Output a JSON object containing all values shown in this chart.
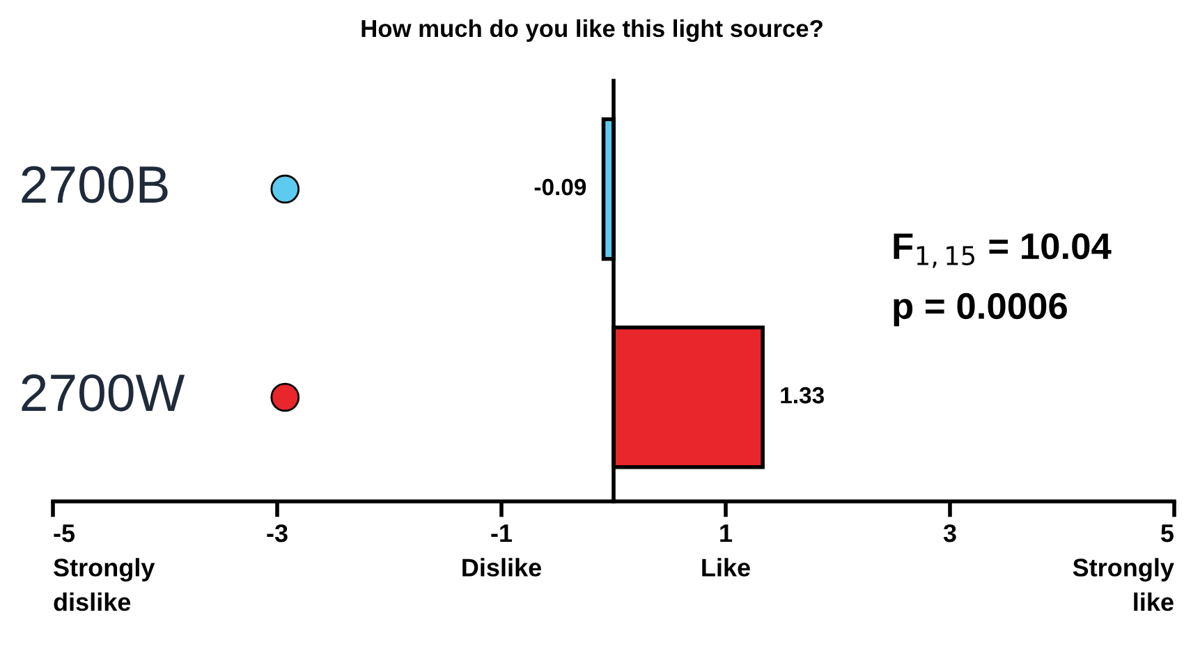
{
  "chart_data": {
    "type": "bar",
    "orientation": "horizontal",
    "title": "How much do you like this light source?",
    "categories": [
      "2700B",
      "2700W"
    ],
    "values": [
      -0.09,
      1.33
    ],
    "colors": [
      "#5ccbef",
      "#e8262b"
    ],
    "data_labels": true,
    "xlim": [
      -5,
      5
    ],
    "xticks": [
      {
        "value": -5,
        "label": "-5\nStrongly\ndislike"
      },
      {
        "value": -3,
        "label": "-3"
      },
      {
        "value": -1,
        "label": "-1\nDislike"
      },
      {
        "value": 1,
        "label": "1\nLike"
      },
      {
        "value": 3,
        "label": "3"
      },
      {
        "value": 5,
        "label": "5\nStrongly\nlike"
      }
    ],
    "annotations": [
      "F$_{1,15}$ = 10.04",
      "p = 0.0006"
    ],
    "grid": false
  }
}
